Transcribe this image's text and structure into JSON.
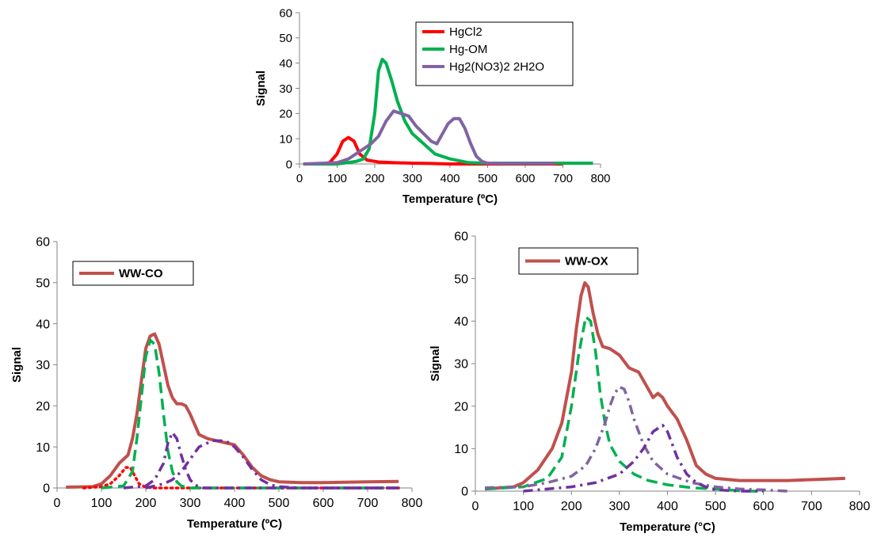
{
  "chart_data": [
    {
      "type": "line",
      "title": "",
      "xlabel": "Temperature (ºC)",
      "ylabel": "Signal",
      "xlim": [
        0,
        800
      ],
      "ylim": [
        0,
        60
      ],
      "xticks": [
        "0",
        "100",
        "200",
        "300",
        "400",
        "500",
        "600",
        "700",
        "800"
      ],
      "yticks": [
        "0",
        "10",
        "20",
        "30",
        "40",
        "50",
        "60"
      ],
      "grid": false,
      "legend_position": "top-right",
      "series": [
        {
          "name": "HgCl2",
          "color": "#ff0000",
          "style": "solid",
          "x": [
            10,
            60,
            80,
            100,
            115,
            130,
            145,
            160,
            180,
            210,
            250,
            300,
            350,
            400,
            500,
            600,
            700
          ],
          "y": [
            0,
            0,
            0.5,
            4,
            9,
            10.5,
            9,
            4,
            1.5,
            0.8,
            0.5,
            0.3,
            0.2,
            0,
            0,
            0,
            0
          ]
        },
        {
          "name": "Hg-OM",
          "color": "#00b050",
          "style": "solid",
          "x": [
            10,
            100,
            150,
            170,
            185,
            200,
            210,
            220,
            230,
            245,
            260,
            280,
            300,
            330,
            360,
            400,
            450,
            500,
            600,
            700,
            780
          ],
          "y": [
            0,
            0,
            1,
            2,
            6,
            20,
            37,
            41.5,
            40,
            33,
            25,
            17,
            12,
            8,
            4,
            2,
            0.5,
            0.3,
            0.3,
            0.3,
            0.3
          ]
        },
        {
          "name": "Hg2(NO3)2 2H2O",
          "color": "#8064a2",
          "style": "solid",
          "x": [
            10,
            100,
            130,
            160,
            190,
            210,
            230,
            250,
            270,
            290,
            310,
            330,
            350,
            365,
            380,
            395,
            410,
            425,
            440,
            455,
            470,
            485,
            500,
            550,
            600,
            680
          ],
          "y": [
            0,
            0.5,
            2,
            5,
            8,
            11,
            17,
            21,
            20,
            19,
            15,
            12,
            9,
            8,
            12,
            16,
            18,
            18,
            14,
            8,
            3,
            1,
            0.3,
            0.2,
            0.2,
            0.2
          ]
        }
      ]
    },
    {
      "type": "line",
      "title": "",
      "xlabel": "Temperature (ºC)",
      "ylabel": "Signal",
      "xlim": [
        0,
        800
      ],
      "ylim": [
        0,
        60
      ],
      "xticks": [
        "0",
        "100",
        "200",
        "300",
        "400",
        "500",
        "600",
        "700",
        "800"
      ],
      "yticks": [
        "0",
        "10",
        "20",
        "30",
        "40",
        "50",
        "60"
      ],
      "grid": false,
      "legend_position": "top-left",
      "series": [
        {
          "name": "WW-CO",
          "color": "#c0504d",
          "style": "solid",
          "x": [
            20,
            80,
            100,
            120,
            140,
            160,
            170,
            180,
            190,
            200,
            210,
            220,
            230,
            240,
            250,
            260,
            270,
            280,
            290,
            300,
            320,
            340,
            360,
            380,
            400,
            420,
            440,
            460,
            480,
            500,
            550,
            600,
            650,
            700,
            770
          ],
          "y": [
            0.2,
            0.3,
            1,
            3,
            6,
            8,
            12,
            18,
            26,
            34,
            37,
            37.5,
            35,
            30,
            25,
            22,
            20.5,
            20.5,
            20,
            18,
            13,
            12,
            11.5,
            11,
            10.5,
            8,
            5,
            3,
            2,
            1.5,
            1.3,
            1.3,
            1.4,
            1.5,
            1.6
          ]
        },
        {
          "color": "#ff0000",
          "style": "dotted",
          "x": [
            60,
            100,
            120,
            140,
            155,
            165,
            175,
            185,
            200,
            220,
            300,
            500,
            770
          ],
          "y": [
            0,
            0.3,
            1,
            3,
            5,
            5,
            3,
            1,
            0.2,
            0,
            0,
            0,
            0
          ]
        },
        {
          "color": "#00b050",
          "style": "dashed",
          "x": [
            100,
            150,
            170,
            180,
            190,
            200,
            210,
            220,
            230,
            240,
            250,
            260,
            270,
            280,
            300,
            400,
            500,
            600,
            700,
            770
          ],
          "y": [
            0,
            0.5,
            4,
            12,
            22,
            32,
            36,
            35,
            28,
            18,
            9,
            4,
            1.5,
            0.5,
            0,
            0,
            0,
            0,
            0,
            0
          ]
        },
        {
          "color": "#7030a0",
          "style": "dashdot",
          "x": [
            150,
            200,
            220,
            240,
            250,
            260,
            270,
            280,
            290,
            300,
            310,
            320,
            330,
            400,
            500,
            770
          ],
          "y": [
            0,
            0.5,
            2,
            6,
            11,
            13.5,
            12,
            8,
            4.5,
            2,
            0.8,
            0.3,
            0,
            0,
            0,
            0
          ]
        },
        {
          "color": "#7030a0",
          "style": "dashdot",
          "x": [
            200,
            240,
            260,
            280,
            300,
            320,
            350,
            380,
            400,
            420,
            440,
            460,
            480,
            500,
            550,
            770
          ],
          "y": [
            0,
            1,
            2,
            4,
            7,
            10,
            11.5,
            11.5,
            10,
            7.5,
            4.5,
            2,
            0.8,
            0.3,
            0,
            0
          ]
        }
      ]
    },
    {
      "type": "line",
      "title": "",
      "xlabel": "Temperature (°C)",
      "ylabel": "Signal",
      "xlim": [
        0,
        800
      ],
      "ylim": [
        0,
        60
      ],
      "xticks": [
        "0",
        "100",
        "200",
        "300",
        "400",
        "500",
        "600",
        "700",
        "800"
      ],
      "yticks": [
        "0",
        "10",
        "20",
        "30",
        "40",
        "50",
        "60"
      ],
      "grid": false,
      "legend_position": "top-left",
      "series": [
        {
          "name": "WW-OX",
          "color": "#c0504d",
          "style": "solid",
          "x": [
            20,
            80,
            100,
            130,
            160,
            180,
            200,
            210,
            220,
            228,
            235,
            245,
            255,
            265,
            280,
            300,
            320,
            340,
            360,
            370,
            380,
            390,
            400,
            420,
            440,
            460,
            480,
            500,
            550,
            600,
            650,
            700,
            770
          ],
          "y": [
            0.5,
            1,
            2,
            5,
            10,
            16,
            28,
            38,
            46,
            49,
            48,
            42,
            37,
            34,
            33.5,
            32,
            29,
            28,
            24,
            22,
            23,
            22,
            20,
            17,
            12,
            6,
            4,
            3,
            2.5,
            2.5,
            2.5,
            2.7,
            3
          ]
        },
        {
          "color": "#00b050",
          "style": "dashed",
          "x": [
            20,
            100,
            150,
            180,
            200,
            215,
            230,
            240,
            250,
            260,
            270,
            280,
            300,
            330,
            360,
            400,
            450,
            500,
            560,
            600
          ],
          "y": [
            0.5,
            1,
            3,
            8,
            20,
            32,
            41,
            40,
            33,
            23,
            16,
            11,
            7,
            4,
            2.5,
            1.5,
            0.8,
            0.5,
            0,
            0
          ]
        },
        {
          "color": "#8064a2",
          "style": "dashdot",
          "x": [
            20,
            100,
            150,
            200,
            230,
            250,
            270,
            280,
            290,
            300,
            310,
            320,
            330,
            340,
            350,
            370,
            400,
            450,
            500,
            550,
            600,
            650
          ],
          "y": [
            0.8,
            1,
            2,
            3.5,
            6,
            10,
            16,
            20,
            23,
            24.5,
            24,
            21,
            17,
            14,
            11,
            7,
            4,
            2,
            1,
            0.5,
            0.3,
            0
          ]
        },
        {
          "color": "#7030a0",
          "style": "dashdot",
          "x": [
            100,
            200,
            250,
            300,
            330,
            350,
            370,
            390,
            400,
            410,
            420,
            440,
            460,
            480,
            500,
            550,
            600
          ],
          "y": [
            0,
            1,
            2,
            4,
            7,
            10,
            14,
            15.5,
            14,
            11,
            8,
            4,
            2,
            1,
            0.3,
            0,
            0
          ]
        }
      ]
    }
  ]
}
